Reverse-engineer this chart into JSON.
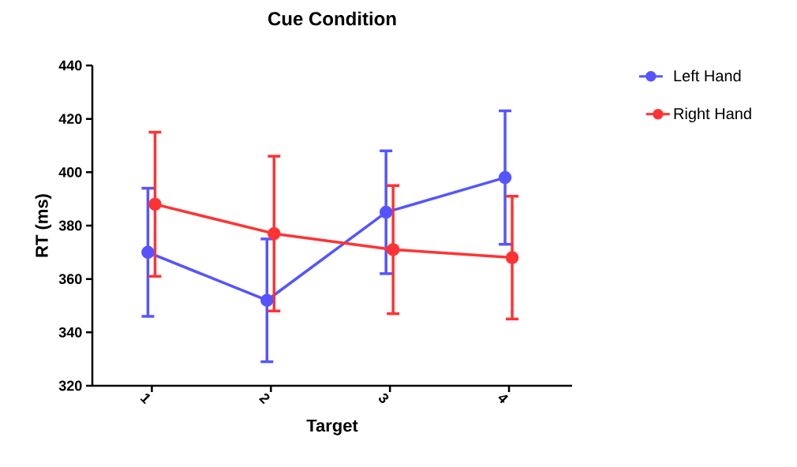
{
  "chart_data": {
    "type": "line",
    "title": "Cue Condition",
    "xlabel": "Target",
    "ylabel": "RT (ms)",
    "categories": [
      "1",
      "2",
      "3",
      "4"
    ],
    "series": [
      {
        "name": "Left Hand",
        "color": "#5555ff",
        "values": [
          370,
          352,
          385,
          398
        ],
        "errors": [
          24,
          23,
          23,
          25
        ]
      },
      {
        "name": "Right Hand",
        "color": "#ff3333",
        "values": [
          388,
          377,
          371,
          368
        ],
        "errors": [
          27,
          29,
          24,
          23
        ]
      }
    ],
    "ylim": [
      320,
      440
    ],
    "yticks": [
      320,
      340,
      360,
      380,
      400,
      420,
      440
    ],
    "legend": "top right",
    "marker": "circle",
    "line_style": "solid",
    "grid": false
  }
}
